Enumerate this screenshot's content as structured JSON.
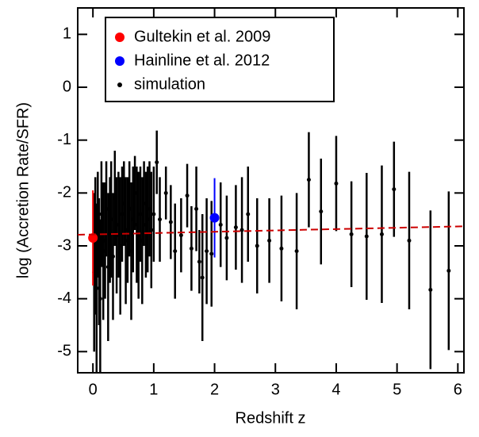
{
  "chart_data": {
    "type": "scatter",
    "xlabel": "Redshift z",
    "ylabel": "log (Accretion Rate/SFR)",
    "xlim": [
      -0.25,
      6.1
    ],
    "ylim": [
      -5.4,
      1.5
    ],
    "xticks": [
      0,
      1,
      2,
      3,
      4,
      5,
      6
    ],
    "yticks": [
      -5,
      -4,
      -3,
      -2,
      -1,
      0,
      1
    ],
    "legend": "upper left",
    "series": [
      {
        "name": "Gultekin et al. 2009",
        "color": "#ff0000",
        "x": [
          0.0
        ],
        "values": [
          -2.85
        ],
        "errors": [
          0.9
        ]
      },
      {
        "name": "Hainline et al. 2012",
        "color": "#0000ff",
        "x": [
          2.0
        ],
        "values": [
          -2.47
        ],
        "errors": [
          0.75
        ]
      },
      {
        "name": "simulation",
        "color": "#000000",
        "x": [
          0.02,
          0.04,
          0.06,
          0.08,
          0.1,
          0.12,
          0.14,
          0.17,
          0.2,
          0.22,
          0.25,
          0.28,
          0.3,
          0.33,
          0.36,
          0.39,
          0.42,
          0.45,
          0.48,
          0.51,
          0.54,
          0.57,
          0.6,
          0.63,
          0.66,
          0.69,
          0.72,
          0.75,
          0.78,
          0.81,
          0.84,
          0.87,
          0.9,
          0.93,
          0.96,
          1.0,
          1.05,
          1.1,
          1.2,
          1.28,
          1.35,
          1.45,
          1.55,
          1.62,
          1.7,
          1.75,
          1.8,
          1.87,
          1.95,
          2.1,
          2.2,
          2.35,
          2.45,
          2.55,
          2.7,
          2.9,
          3.1,
          3.35,
          3.55,
          3.75,
          4.0,
          4.25,
          4.5,
          4.75,
          4.95,
          5.2,
          5.55,
          5.85
        ],
        "values": [
          -3.5,
          -3.0,
          -3.8,
          -2.6,
          -3.3,
          -4.0,
          -2.4,
          -3.1,
          -2.9,
          -2.3,
          -3.4,
          -2.7,
          -2.5,
          -3.2,
          -2.1,
          -2.8,
          -2.6,
          -3.0,
          -2.4,
          -2.2,
          -2.9,
          -2.7,
          -2.3,
          -3.1,
          -2.5,
          -2.0,
          -2.6,
          -2.8,
          -2.4,
          -2.9,
          -2.2,
          -2.6,
          -2.5,
          -2.3,
          -2.7,
          -2.4,
          -1.42,
          -2.5,
          -2.0,
          -2.55,
          -3.1,
          -2.8,
          -2.05,
          -3.05,
          -2.3,
          -3.3,
          -3.6,
          -3.1,
          -3.15,
          -2.6,
          -2.85,
          -2.65,
          -2.7,
          -2.4,
          -3.0,
          -2.9,
          -3.05,
          -3.1,
          -1.75,
          -2.35,
          -1.82,
          -2.78,
          -2.82,
          -2.78,
          -1.93,
          -2.9,
          -3.83,
          -3.47
        ],
        "errors": [
          1.5,
          1.3,
          1.6,
          1.0,
          1.2,
          1.5,
          1.0,
          1.3,
          1.1,
          0.9,
          1.4,
          1.0,
          1.1,
          1.2,
          0.9,
          1.1,
          1.0,
          1.3,
          0.9,
          0.8,
          1.2,
          1.0,
          0.9,
          1.3,
          1.0,
          0.7,
          1.1,
          1.2,
          0.9,
          1.2,
          0.8,
          1.0,
          1.0,
          0.9,
          1.1,
          0.9,
          0.6,
          0.8,
          0.5,
          0.7,
          0.9,
          0.7,
          0.6,
          0.8,
          0.8,
          0.6,
          1.2,
          1.0,
          1.0,
          0.8,
          0.8,
          0.8,
          1.0,
          0.9,
          0.9,
          0.8,
          1.0,
          1.1,
          0.9,
          1.0,
          0.9,
          1.0,
          1.2,
          1.3,
          0.9,
          1.3,
          1.5,
          1.5
        ]
      }
    ],
    "fit_line": {
      "color": "#cc0000",
      "x": [
        -0.25,
        6.1
      ],
      "values": [
        -2.79,
        -2.63
      ]
    }
  }
}
